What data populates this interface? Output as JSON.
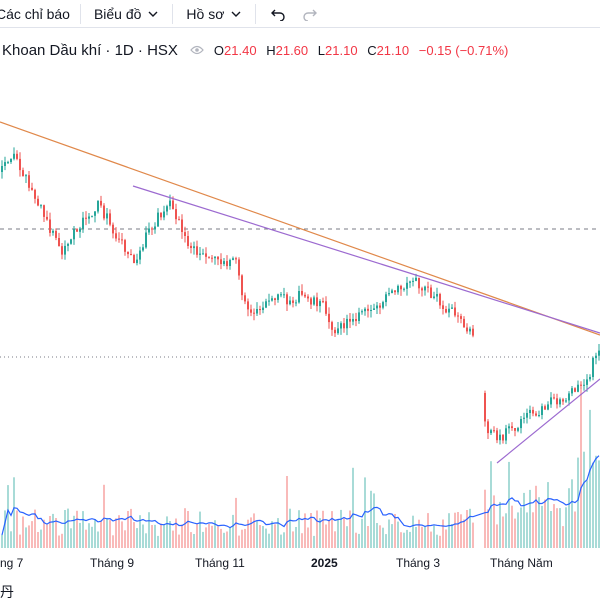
{
  "toolbar": {
    "indicators_label": "Các chỉ báo",
    "chart_type_label": "Biểu đồ",
    "profile_label": "Hồ sơ",
    "undo_icon": "undo-icon",
    "redo_icon": "redo-icon"
  },
  "legend": {
    "title": "Khoan Dầu khí · 1D · HSX",
    "o_label": "O",
    "o_value": "21.40",
    "h_label": "H",
    "h_value": "21.60",
    "l_label": "L",
    "l_value": "21.10",
    "c_label": "C",
    "c_value": "21.10",
    "change": "−0.15 (−0.71%)",
    "eye_icon": "eye-icon"
  },
  "xaxis": {
    "labels": [
      "ng 7",
      "Tháng 9",
      "Tháng 11",
      "2025",
      "Tháng 3",
      "Tháng Năm"
    ]
  },
  "bottom_glyph": "丹",
  "colors": {
    "up": "#26a69a",
    "down": "#ef5350",
    "trendline_orange": "#e0884a",
    "trendline_purple": "#9c6ad0",
    "volume_ma": "#2962ff"
  }
}
